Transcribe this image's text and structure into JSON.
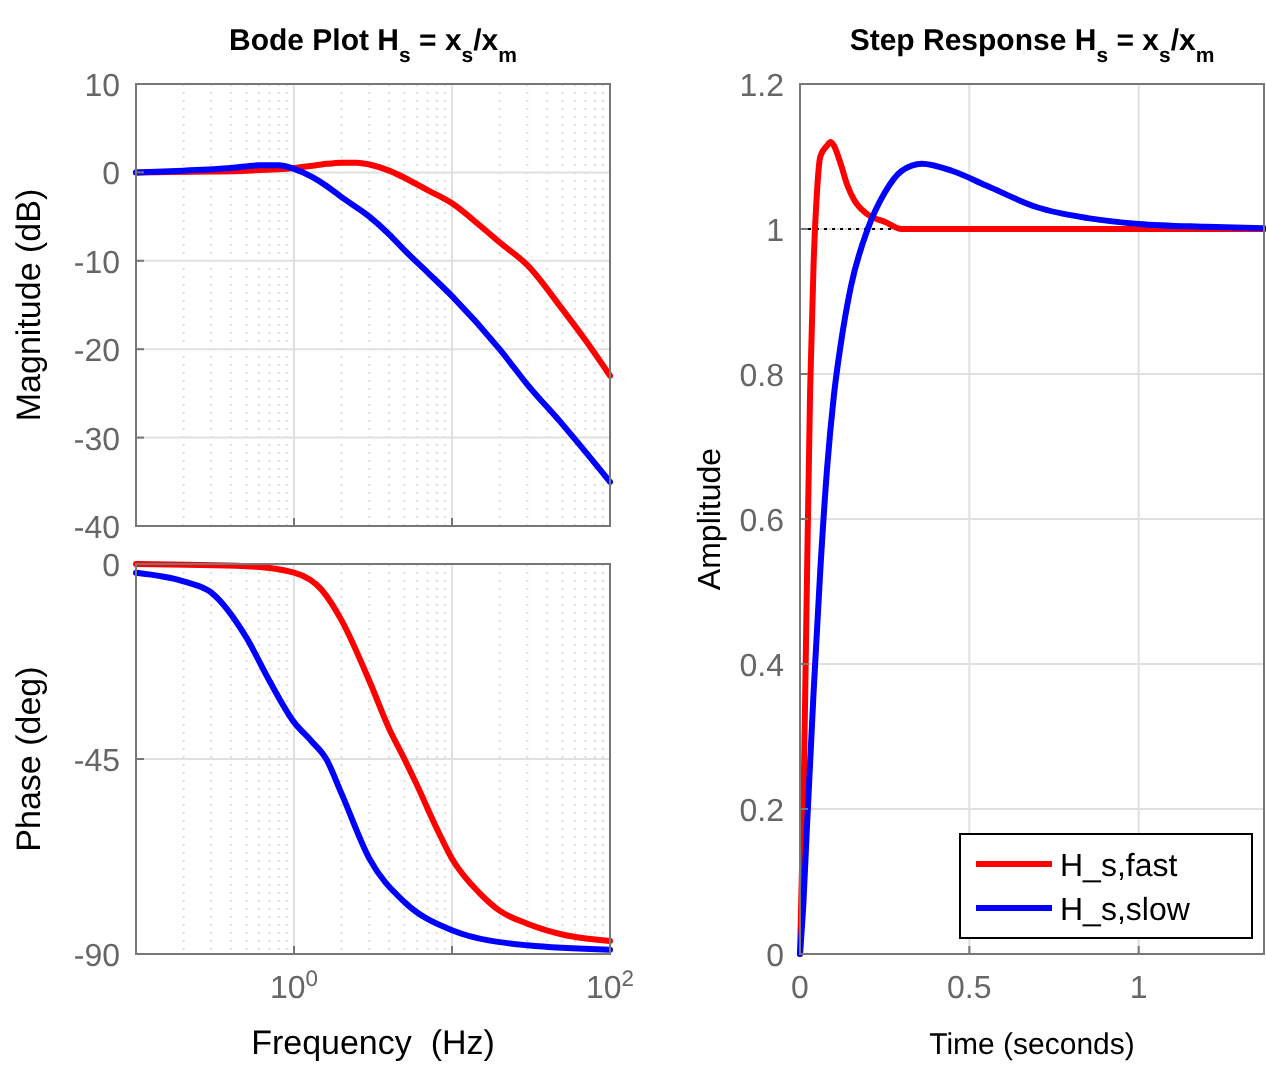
{
  "chart_data": [
    {
      "type": "line",
      "title": "Bode Plot H$_{s}$ = x$_{s}$/x$_{m}$",
      "ylabel": "Magnitude (dB)",
      "log": "x",
      "xlim": [
        0.1,
        100
      ],
      "xticks": [
        {
          "value": 0.1,
          "label": null
        },
        {
          "value": 1,
          "label": null
        },
        {
          "value": 10,
          "label": null
        },
        {
          "value": 100,
          "label": null
        }
      ],
      "ylim": [
        -40,
        10
      ],
      "yticks": [
        -40,
        -30,
        -20,
        -10,
        0,
        10
      ],
      "grid": true,
      "tick_labels": "y",
      "series": [
        {
          "color": "#ff0000",
          "x": [
            0.1,
            0.3,
            0.5,
            1,
            1.5,
            2,
            2.5,
            3,
            4,
            5,
            7,
            10,
            15,
            20,
            30,
            50,
            70,
            100
          ],
          "values": [
            0,
            0.1,
            0.2,
            0.5,
            0.9,
            1.1,
            1.1,
            0.9,
            0.2,
            -0.6,
            -2,
            -3.5,
            -6,
            -7.9,
            -10.5,
            -15.5,
            -19,
            -23
          ]
        },
        {
          "color": "#0000ff",
          "x": [
            0.1,
            0.2,
            0.4,
            0.6,
            0.8,
            1,
            1.3,
            1.6,
            2,
            3,
            4,
            5,
            7,
            10,
            20,
            30,
            50,
            100
          ],
          "values": [
            0,
            0.2,
            0.5,
            0.8,
            0.8,
            0.4,
            -0.5,
            -1.5,
            -2.8,
            -5,
            -7,
            -8.8,
            -11.3,
            -14,
            -20,
            -24,
            -28.5,
            -35
          ]
        }
      ]
    },
    {
      "type": "line",
      "xlabel": "Frequency  (Hz)",
      "ylabel": "Phase (deg)",
      "log": "x",
      "xlim": [
        0.1,
        100
      ],
      "xticks": [
        {
          "value": 0.1,
          "label": null
        },
        {
          "value": 1,
          "label": "10$^{0}$"
        },
        {
          "value": 10,
          "label": null
        },
        {
          "value": 100,
          "label": "10$^{2}$"
        }
      ],
      "ylim": [
        -90,
        0
      ],
      "yticks": [
        -90,
        -45,
        0
      ],
      "grid": true,
      "series": [
        {
          "color": "#ff0000",
          "x": [
            0.1,
            0.5,
            1,
            1.5,
            2,
            3,
            4,
            5,
            6,
            8,
            10,
            15,
            20,
            30,
            50,
            100
          ],
          "values": [
            0,
            -0.5,
            -2,
            -6,
            -13,
            -27,
            -38,
            -45,
            -51,
            -61,
            -68,
            -76,
            -80,
            -83,
            -85.5,
            -87
          ]
        },
        {
          "color": "#0000ff",
          "x": [
            0.1,
            0.2,
            0.3,
            0.5,
            0.7,
            1,
            1.3,
            1.6,
            2,
            3,
            5,
            10,
            30,
            100
          ],
          "values": [
            -2,
            -4,
            -6.6,
            -17,
            -27,
            -36.5,
            -41,
            -45,
            -53,
            -68,
            -78,
            -84.5,
            -88,
            -89
          ]
        }
      ]
    },
    {
      "type": "line",
      "title": "Step Response H$_{s}$ = x$_{s}$/x$_{m}$",
      "xlabel": "Time (seconds)",
      "ylabel": "Amplitude",
      "xlim": [
        0,
        1.37
      ],
      "xticks": [
        0,
        0.5,
        1
      ],
      "ylim": [
        0,
        1.2
      ],
      "yticks": [
        0,
        0.2,
        0.4,
        0.6,
        0.8,
        1,
        1.2
      ],
      "grid": true,
      "legend": "bottom right",
      "ref_lines": [
        {
          "axis": "y",
          "value": 1,
          "color": "#000000",
          "line_style": "dotted"
        }
      ],
      "series": [
        {
          "name": "H_s,fast",
          "color": "#ff0000",
          "x": [
            0,
            0.01,
            0.02,
            0.03,
            0.04,
            0.05,
            0.06,
            0.08,
            0.09,
            0.1,
            0.12,
            0.14,
            0.16,
            0.2,
            0.25,
            0.3,
            0.35,
            0.4,
            0.6,
            1.0,
            1.37
          ],
          "values": [
            0,
            0.2,
            0.5,
            0.78,
            0.95,
            1.05,
            1.1,
            1.115,
            1.12,
            1.115,
            1.09,
            1.06,
            1.04,
            1.02,
            1.01,
            1.0,
            1.0,
            1.0,
            1.0,
            1.0,
            1.0
          ]
        },
        {
          "name": "H_s,slow",
          "color": "#0000ff",
          "x": [
            0,
            0.01,
            0.02,
            0.04,
            0.06,
            0.08,
            0.1,
            0.12,
            0.15,
            0.2,
            0.25,
            0.3,
            0.36,
            0.45,
            0.55,
            0.7,
            0.85,
            1.0,
            1.2,
            1.37
          ],
          "values": [
            0,
            0.07,
            0.17,
            0.36,
            0.53,
            0.67,
            0.77,
            0.84,
            0.92,
            1.0,
            1.05,
            1.08,
            1.09,
            1.08,
            1.06,
            1.03,
            1.015,
            1.007,
            1.003,
            1.001
          ]
        }
      ]
    }
  ]
}
